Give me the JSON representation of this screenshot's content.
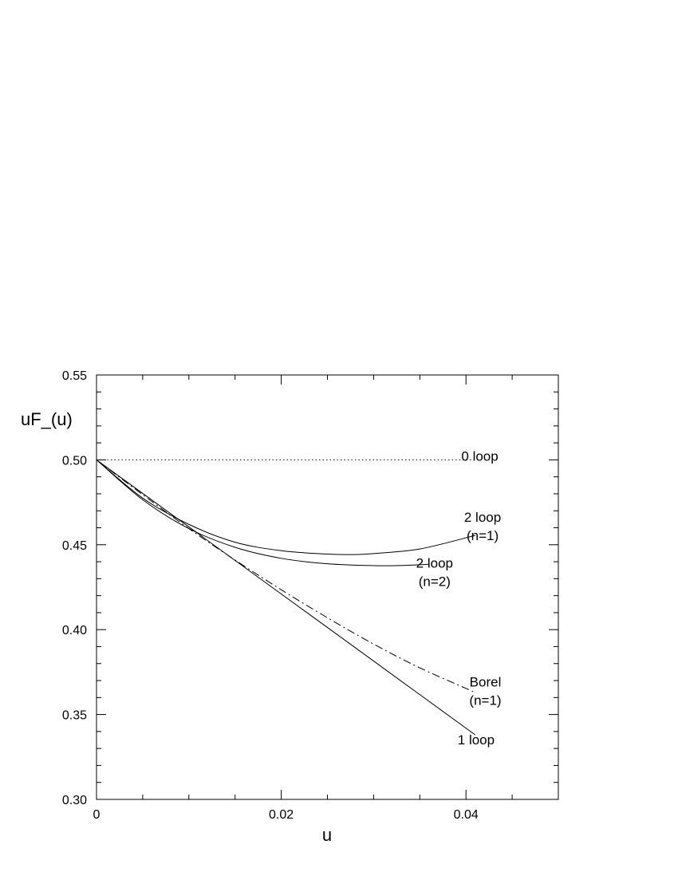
{
  "chart_data": {
    "type": "line",
    "title": "",
    "xlabel": "u",
    "ylabel": "uF_(u)",
    "xlim": [
      0,
      0.05
    ],
    "ylim": [
      0.3,
      0.55
    ],
    "x_ticks": [
      0,
      0.02,
      0.04
    ],
    "x_tick_labels": [
      "0",
      "0.02",
      "0.04"
    ],
    "x_minor_step": 0.005,
    "y_ticks": [
      0.3,
      0.35,
      0.4,
      0.45,
      0.5,
      0.55
    ],
    "y_tick_labels": [
      "0.30",
      "0.35",
      "0.40",
      "0.45",
      "0.50",
      "0.55"
    ],
    "y_minor_step": 0.01,
    "grid": false,
    "legend": "none",
    "series": [
      {
        "name": "0 loop",
        "style": "dotted",
        "x": [
          0,
          0.01,
          0.02,
          0.03,
          0.041
        ],
        "y": [
          0.5,
          0.5,
          0.5,
          0.5,
          0.5
        ]
      },
      {
        "name": "1 loop",
        "style": "solid",
        "x": [
          0,
          0.01,
          0.02,
          0.03,
          0.041
        ],
        "y": [
          0.5,
          0.4605,
          0.421,
          0.3815,
          0.338
        ]
      },
      {
        "name": "2 loop (n=1)",
        "style": "solid",
        "x": [
          0,
          0.005,
          0.01,
          0.015,
          0.02,
          0.025,
          0.028,
          0.03,
          0.035,
          0.041
        ],
        "y": [
          0.5,
          0.4775,
          0.462,
          0.4515,
          0.4465,
          0.4445,
          0.4442,
          0.4448,
          0.4475,
          0.4555
        ]
      },
      {
        "name": "2 loop (n=2)",
        "style": "solid",
        "x": [
          0,
          0.005,
          0.01,
          0.015,
          0.02,
          0.025,
          0.03,
          0.033,
          0.036
        ],
        "y": [
          0.5,
          0.4765,
          0.4595,
          0.4485,
          0.442,
          0.4388,
          0.4377,
          0.4378,
          0.4385
        ]
      },
      {
        "name": "Borel (n=1)",
        "style": "dashdot",
        "x": [
          0,
          0.005,
          0.01,
          0.015,
          0.02,
          0.025,
          0.03,
          0.035,
          0.041
        ],
        "y": [
          0.5,
          0.4795,
          0.4595,
          0.441,
          0.4235,
          0.407,
          0.3915,
          0.3775,
          0.363
        ]
      }
    ],
    "annotations": [
      {
        "lines": [
          "0 loop"
        ],
        "x": 0.0415,
        "y": 0.4995
      },
      {
        "lines": [
          "2 loop",
          "(n=1)"
        ],
        "x": 0.0418,
        "y": 0.4635
      },
      {
        "lines": [
          "2 loop",
          "(n=2)"
        ],
        "x": 0.0366,
        "y": 0.4365
      },
      {
        "lines": [
          "Borel",
          "(n=1)"
        ],
        "x": 0.0421,
        "y": 0.3665
      },
      {
        "lines": [
          "1 loop"
        ],
        "x": 0.0411,
        "y": 0.3325
      }
    ]
  }
}
